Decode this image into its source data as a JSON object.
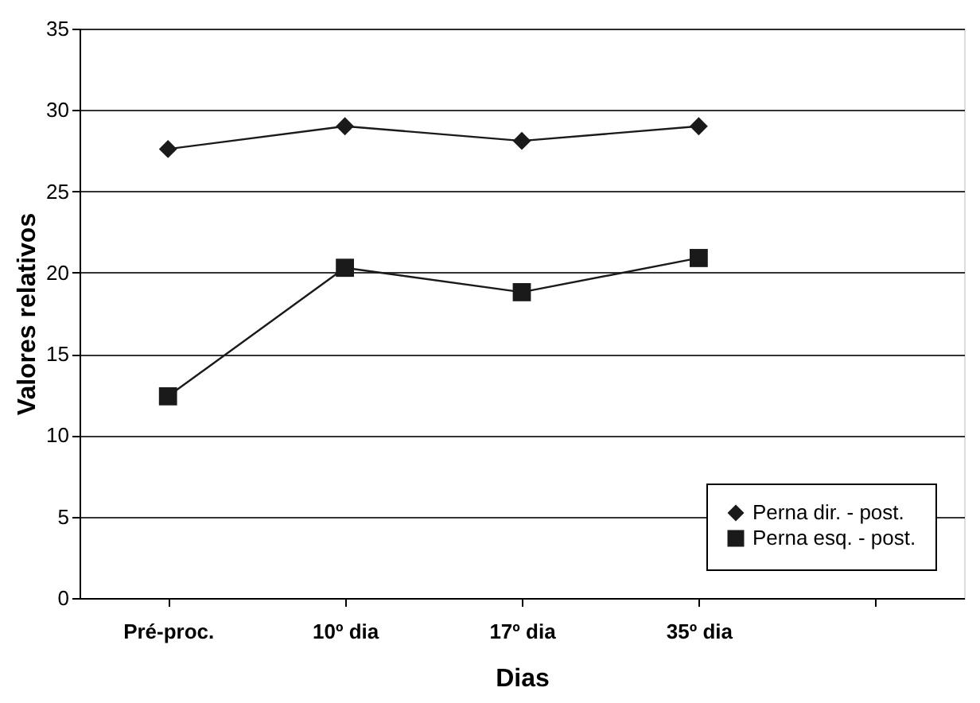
{
  "chart_data": {
    "type": "line",
    "xlabel": "Dias",
    "ylabel": "Valores relativos",
    "categories": [
      "Pré-proc.",
      "10º dia",
      "17º dia",
      "35º dia",
      null
    ],
    "series": [
      {
        "name": "Perna dir. - post.",
        "color": "#1a1a1a",
        "marker": "diamond",
        "values": [
          27.6,
          29.0,
          28.1,
          29.0,
          null
        ]
      },
      {
        "name": "Perna esq. - post.",
        "color": "#1a1a1a",
        "marker": "square",
        "values": [
          12.4,
          20.3,
          18.8,
          20.9,
          null
        ]
      }
    ],
    "ylim": [
      0,
      35
    ],
    "yticks": [
      0,
      5,
      10,
      15,
      20,
      25,
      30,
      35
    ],
    "grid": "y",
    "legend": "bottom right",
    "line_style": "solid"
  }
}
